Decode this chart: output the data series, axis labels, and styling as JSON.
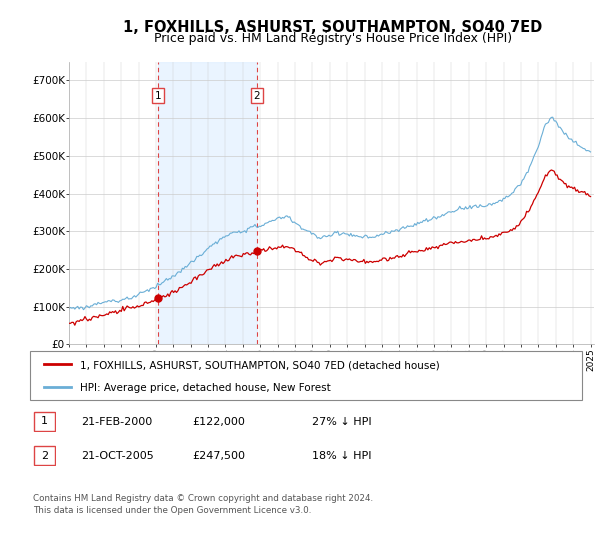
{
  "title": "1, FOXHILLS, ASHURST, SOUTHAMPTON, SO40 7ED",
  "subtitle": "Price paid vs. HM Land Registry's House Price Index (HPI)",
  "ylim": [
    0,
    750000
  ],
  "yticks": [
    0,
    100000,
    200000,
    300000,
    400000,
    500000,
    600000,
    700000
  ],
  "ytick_labels": [
    "£0",
    "£100K",
    "£200K",
    "£300K",
    "£400K",
    "£500K",
    "£600K",
    "£700K"
  ],
  "hpi_color": "#6aaed6",
  "hpi_fill_color": "#ddeeff",
  "price_color": "#cc0000",
  "vline_color": "#dd4444",
  "marker1_x": 2000.12,
  "marker2_x": 2005.8,
  "marker1_price": 122000,
  "marker2_price": 247500,
  "legend_label1": "1, FOXHILLS, ASHURST, SOUTHAMPTON, SO40 7ED (detached house)",
  "legend_label2": "HPI: Average price, detached house, New Forest",
  "table_row1": [
    "1",
    "21-FEB-2000",
    "£122,000",
    "27% ↓ HPI"
  ],
  "table_row2": [
    "2",
    "21-OCT-2005",
    "£247,500",
    "18% ↓ HPI"
  ],
  "footnote": "Contains HM Land Registry data © Crown copyright and database right 2024.\nThis data is licensed under the Open Government Licence v3.0.",
  "background_color": "#ffffff",
  "grid_color": "#cccccc",
  "title_fontsize": 10.5,
  "subtitle_fontsize": 9
}
